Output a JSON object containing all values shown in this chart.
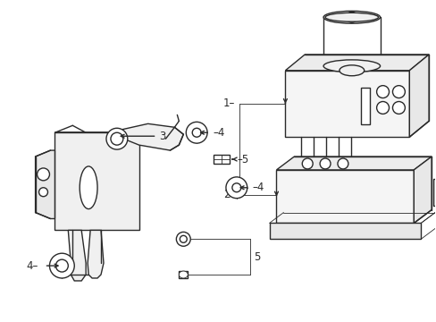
{
  "bg_color": "#ffffff",
  "line_color": "#2a2a2a",
  "figsize": [
    4.89,
    3.6
  ],
  "dpi": 100,
  "lw_main": 1.0,
  "lw_thin": 0.6,
  "label_fontsize": 8.0
}
